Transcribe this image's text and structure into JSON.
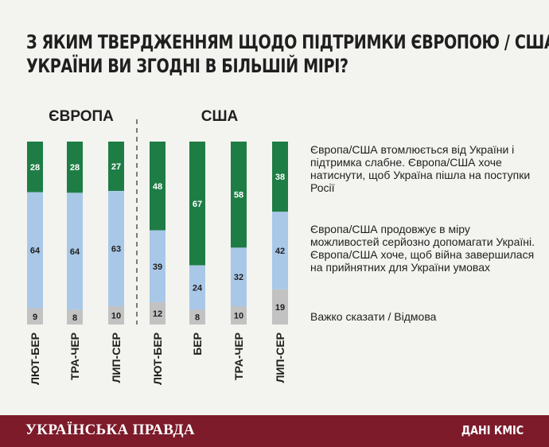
{
  "title": {
    "line1": "З ЯКИМ ТВЕРДЖЕННЯМ ЩОДО ПІДТРИМКИ ЄВРОПОЮ / США",
    "line2": "УКРАЇНИ ВИ ЗГОДНІ В БІЛЬШІЙ МІРІ?"
  },
  "legend": {
    "tired": "Європа/США втомлюється від України і підтримка слабне. Європа/США хоче натиснути, щоб Україна пішла на поступки Росії",
    "continue": "Європа/США продовжує в міру можливостей серйозно допомагати Україні. Європа/США хоче, щоб війна завершилася на прийнятних для України умовах",
    "hard": "Важко сказати / Відмова"
  },
  "footer": {
    "brand": "УКРАЇНСЬКА ПРАВДА",
    "source": "ДАНІ КМІС"
  },
  "colors": {
    "tired": "#1e7d45",
    "continue": "#a9c8e8",
    "hard": "#c2c2c2",
    "footer_bg": "#7d1b2b",
    "background": "#f3f4ef"
  },
  "chart_data": {
    "type": "bar",
    "stacked": true,
    "title": "З ЯКИМ ТВЕРДЖЕННЯМ ЩОДО ПІДТРИМКИ ЄВРОПОЮ / США УКРАЇНИ ВИ ЗГОДНІ В БІЛЬШІЙ МІРІ?",
    "ylim": [
      0,
      100
    ],
    "groups": [
      {
        "name": "ЄВРОПА",
        "categories": [
          "ЛЮТ-БЕР",
          "ТРА-ЧЕР",
          "ЛИП-СЕР"
        ],
        "series": [
          {
            "key": "tired",
            "values": [
              28,
              28,
              27
            ]
          },
          {
            "key": "continue",
            "values": [
              64,
              64,
              63
            ]
          },
          {
            "key": "hard",
            "values": [
              9,
              8,
              10
            ]
          }
        ]
      },
      {
        "name": "США",
        "categories": [
          "ЛЮТ-БЕР",
          "БЕР",
          "ТРА-ЧЕР",
          "ЛИП-СЕР"
        ],
        "series": [
          {
            "key": "tired",
            "values": [
              48,
              67,
              58,
              38
            ]
          },
          {
            "key": "continue",
            "values": [
              39,
              24,
              32,
              42
            ]
          },
          {
            "key": "hard",
            "values": [
              12,
              8,
              10,
              19
            ]
          }
        ]
      }
    ]
  }
}
